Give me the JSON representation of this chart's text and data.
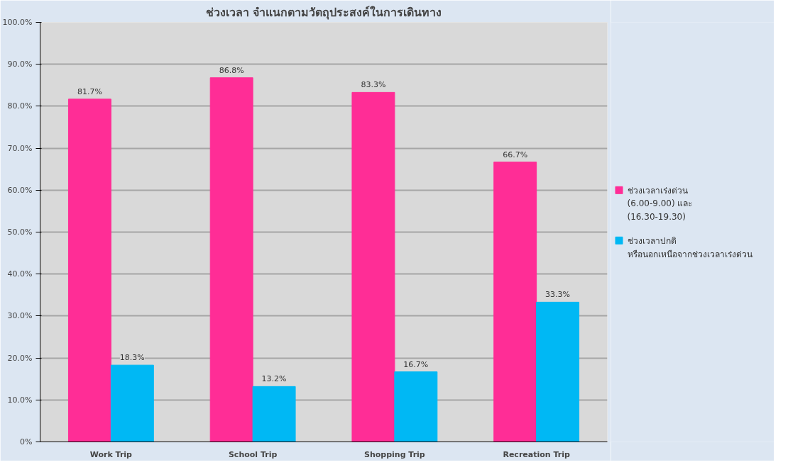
{
  "chart_data": {
    "type": "bar",
    "title": "ช่วงเวลา จำแนกตามวัตถุประสงค์ในการเดินทาง",
    "categories": [
      "Work Trip",
      "School Trip",
      "Shopping Trip",
      "Recreation Trip"
    ],
    "series": [
      {
        "name": "ช่วงเวลาเร่งด่วน (6.00-9.00) และ (16.30-19.30)",
        "color": "#ff2d96",
        "values": [
          81.7,
          86.8,
          83.3,
          66.7
        ],
        "value_labels": [
          "81.7%",
          "86.8%",
          "83.3%",
          "66.7%"
        ]
      },
      {
        "name": "ช่วงเวลาปกติ หรือนอกเหนือจากช่วงเวลาเร่งด่วน",
        "color": "#00b8f4",
        "values": [
          18.3,
          13.2,
          16.7,
          33.3
        ],
        "value_labels": [
          "18.3%",
          "13.2%",
          "16.7%",
          "33.3%"
        ]
      }
    ],
    "ylim": [
      0,
      100
    ],
    "yticks": [
      {
        "value": 0,
        "label": "0%"
      },
      {
        "value": 10,
        "label": "10.0%"
      },
      {
        "value": 20,
        "label": "20.0%"
      },
      {
        "value": 30,
        "label": "30.0%"
      },
      {
        "value": 40,
        "label": "40.0%"
      },
      {
        "value": 50,
        "label": "50.0%"
      },
      {
        "value": 60,
        "label": "60.0%"
      },
      {
        "value": 70,
        "label": "70.0%"
      },
      {
        "value": 80,
        "label": "80.0%"
      },
      {
        "value": 90,
        "label": "90.0%"
      },
      {
        "value": 100,
        "label": "100.0%"
      }
    ],
    "grid": "y",
    "legend": "right"
  }
}
